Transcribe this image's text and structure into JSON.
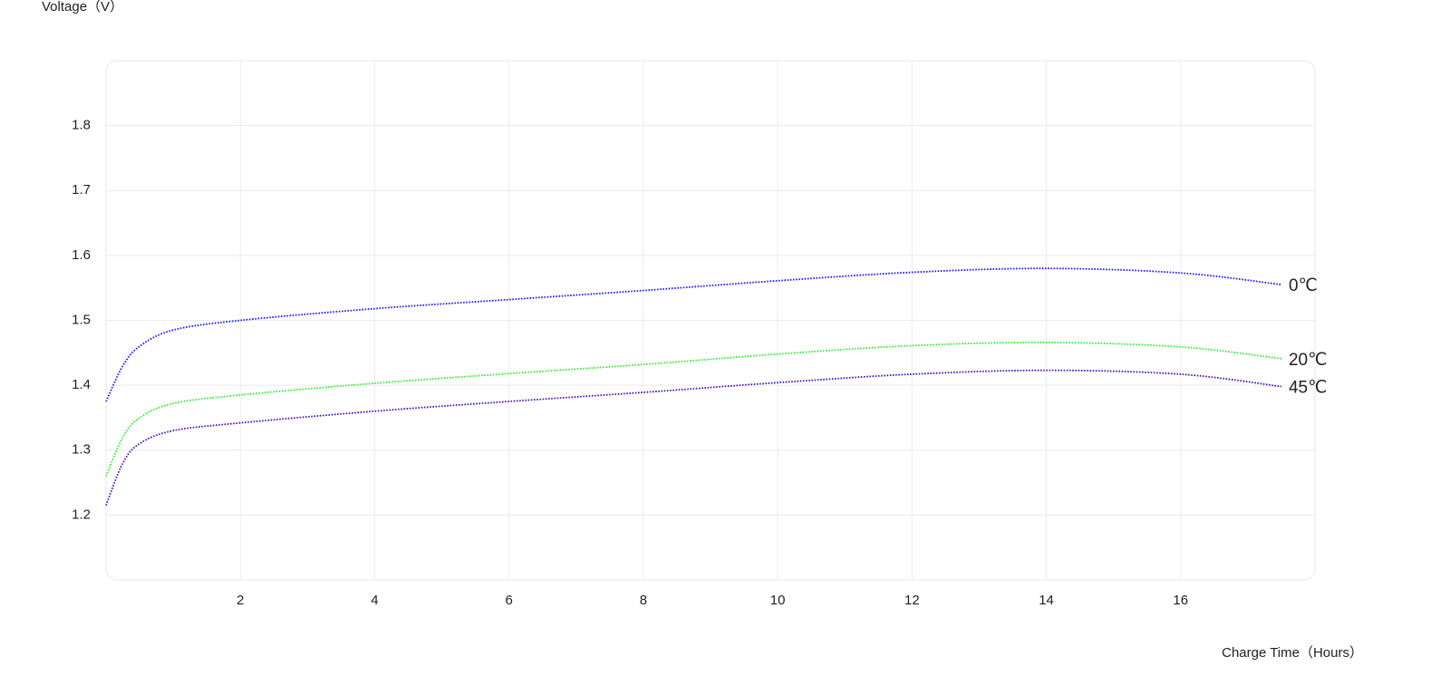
{
  "chart_data": {
    "type": "line",
    "y_label": "Voltage（V）",
    "x_label": "Charge Time（Hours）",
    "x": [
      0,
      0.25,
      0.5,
      1,
      2,
      4,
      6,
      8,
      10,
      12,
      14,
      16,
      17.5
    ],
    "series": [
      {
        "name": "0℃",
        "color": "#1a1aff",
        "values": [
          1.375,
          1.43,
          1.46,
          1.485,
          1.5,
          1.518,
          1.532,
          1.546,
          1.561,
          1.574,
          1.58,
          1.573,
          1.555
        ]
      },
      {
        "name": "20℃",
        "color": "#33ee33",
        "values": [
          1.26,
          1.32,
          1.35,
          1.372,
          1.385,
          1.403,
          1.418,
          1.432,
          1.448,
          1.461,
          1.466,
          1.459,
          1.441
        ]
      },
      {
        "name": "45℃",
        "color": "#4a10b8",
        "values": [
          1.215,
          1.28,
          1.31,
          1.33,
          1.342,
          1.36,
          1.375,
          1.389,
          1.404,
          1.417,
          1.423,
          1.417,
          1.398
        ]
      }
    ],
    "xlim": [
      0,
      18
    ],
    "xticks": [
      2,
      4,
      6,
      8,
      10,
      12,
      14,
      16
    ],
    "ylim": [
      1.1,
      1.9
    ],
    "yticks": [
      1.2,
      1.3,
      1.4,
      1.5,
      1.6,
      1.7,
      1.8
    ],
    "grid": true,
    "line_style": "dotted"
  }
}
